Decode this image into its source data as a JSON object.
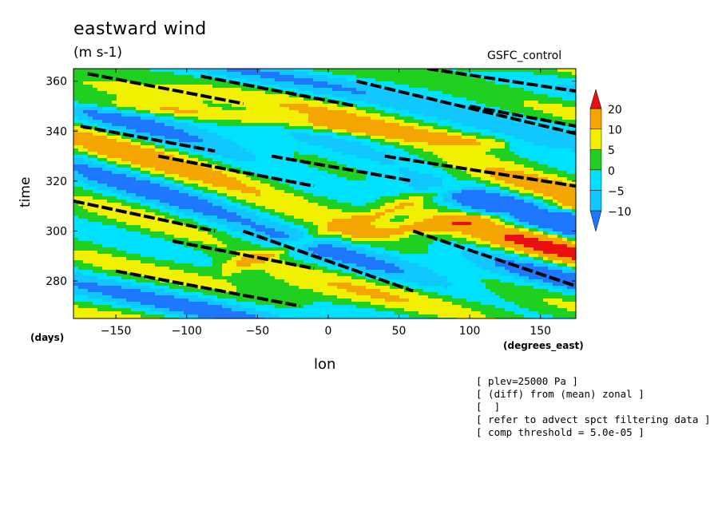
{
  "title": "eastward wind",
  "units": "(m s-1)",
  "run_label": "GSFC_control",
  "notes": [
    "[ plev=25000 Pa ]",
    "[ (diff) from (mean) zonal ]",
    "[  ]",
    "[ refer to advect spct filtering data ]",
    "[ comp threshold = 5.0e-05 ]"
  ],
  "chart_data": {
    "type": "heatmap",
    "title": "eastward wind",
    "subtitle": "(m s-1)",
    "xlabel": "lon",
    "xunit": "(degrees_east)",
    "ylabel": "time",
    "yunit": "(days)",
    "xlim": [
      -180,
      175
    ],
    "ylim": [
      265,
      365
    ],
    "xticks": [
      -150,
      -100,
      -50,
      0,
      50,
      100,
      150
    ],
    "yticks": [
      280,
      300,
      320,
      340,
      360
    ],
    "colorbar": {
      "levels": [
        -10,
        -5,
        0,
        5,
        10,
        20
      ],
      "colors": [
        "#1e78ff",
        "#10c8ff",
        "#00e0ff",
        "#20d020",
        "#f0f000",
        "#f5a500",
        "#e81010"
      ],
      "extend": "both"
    },
    "features": [
      {
        "name": "positive anomaly band",
        "lon_start": -70,
        "time_start": 285,
        "lon_end": 90,
        "time_end": 318
      },
      {
        "name": "positive anomaly band",
        "lon_start": 20,
        "time_start": 298,
        "lon_end": 175,
        "time_end": 310
      },
      {
        "name": "positive anomaly band",
        "lon_start": -180,
        "time_start": 352,
        "lon_end": 120,
        "time_end": 335
      }
    ],
    "threshold_tracks": [
      {
        "lon_start": -180,
        "time_start": 312,
        "lon_end": -80,
        "time_end": 300
      },
      {
        "lon_start": -170,
        "time_start": 363,
        "lon_end": -60,
        "time_end": 351
      },
      {
        "lon_start": -90,
        "time_start": 362,
        "lon_end": 20,
        "time_end": 350
      },
      {
        "lon_start": -60,
        "time_start": 300,
        "lon_end": 60,
        "time_end": 276
      },
      {
        "lon_start": 20,
        "time_start": 360,
        "lon_end": 175,
        "time_end": 339
      },
      {
        "lon_start": -150,
        "time_start": 284,
        "lon_end": -20,
        "time_end": 270
      },
      {
        "lon_start": 40,
        "time_start": 330,
        "lon_end": 175,
        "time_end": 318
      },
      {
        "lon_start": 60,
        "time_start": 300,
        "lon_end": 175,
        "time_end": 278
      },
      {
        "lon_start": 70,
        "time_start": 365,
        "lon_end": 175,
        "time_end": 356
      },
      {
        "lon_start": -120,
        "time_start": 330,
        "lon_end": -10,
        "time_end": 318
      },
      {
        "lon_start": -110,
        "time_start": 296,
        "lon_end": -10,
        "time_end": 285
      },
      {
        "lon_start": 100,
        "time_start": 350,
        "lon_end": 175,
        "time_end": 342
      },
      {
        "lon_start": -40,
        "time_start": 330,
        "lon_end": 60,
        "time_end": 320
      },
      {
        "lon_start": -175,
        "time_start": 342,
        "lon_end": -80,
        "time_end": 332
      }
    ]
  }
}
